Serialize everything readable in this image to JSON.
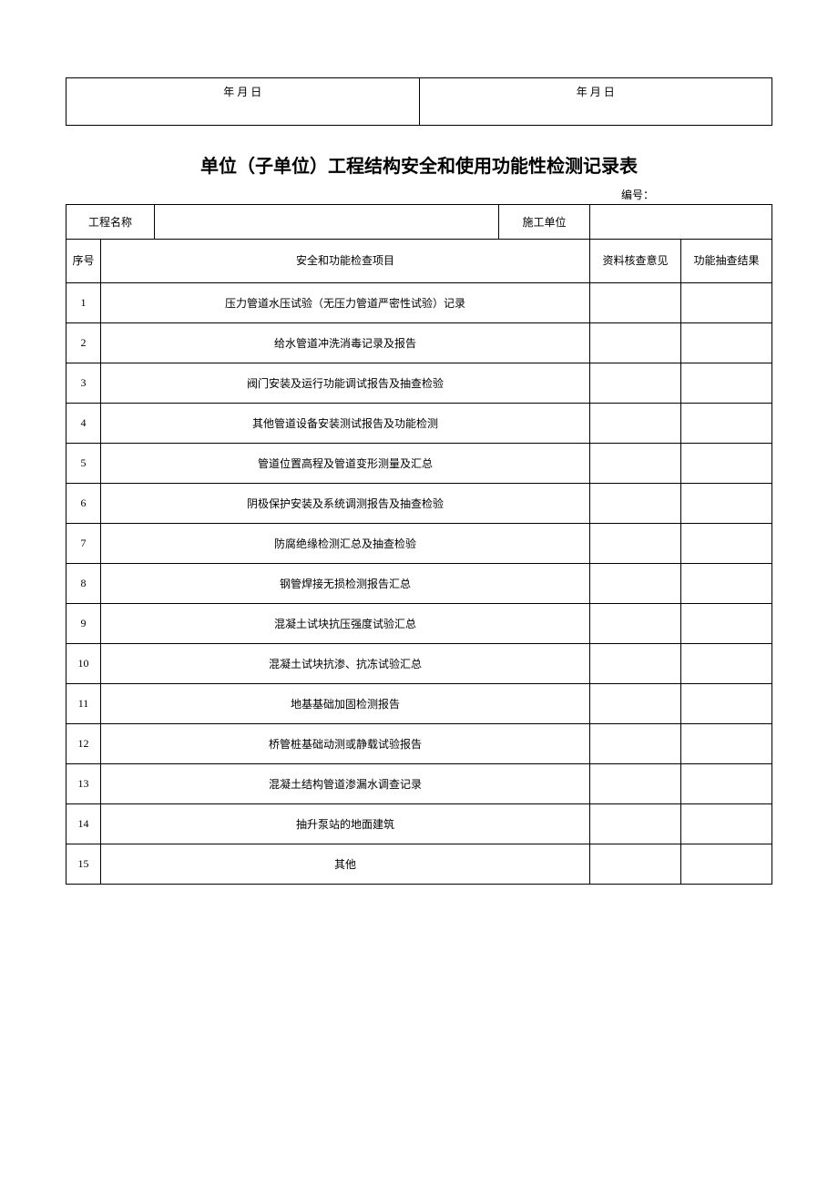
{
  "topRow": {
    "left": "年  月           日",
    "right": "年  月           日"
  },
  "title": "单位（子单位）工程结构安全和使用功能性检测记录表",
  "serialLabel": "编号：",
  "infoRow": {
    "projectNameLabel": "工程名称",
    "projectNameValue": "",
    "constructionUnitLabel": "施工单位",
    "constructionUnitValue": ""
  },
  "headers": {
    "seq": "序号",
    "item": "安全和功能检查项目",
    "review": "资料核查意见",
    "result": "功能抽查结果"
  },
  "rows": [
    {
      "seq": "1",
      "item": "压力管道水压试验（无压力管道严密性试验）记录",
      "review": "",
      "result": ""
    },
    {
      "seq": "2",
      "item": "给水管道冲洗消毒记录及报告",
      "review": "",
      "result": ""
    },
    {
      "seq": "3",
      "item": "阀门安装及运行功能调试报告及抽查检验",
      "review": "",
      "result": ""
    },
    {
      "seq": "4",
      "item": "其他管道设备安装测试报告及功能检测",
      "review": "",
      "result": ""
    },
    {
      "seq": "5",
      "item": "管道位置高程及管道变形测量及汇总",
      "review": "",
      "result": ""
    },
    {
      "seq": "6",
      "item": "阴极保护安装及系统调测报告及抽查检验",
      "review": "",
      "result": ""
    },
    {
      "seq": "7",
      "item": "防腐绝缘检测汇总及抽查检验",
      "review": "",
      "result": ""
    },
    {
      "seq": "8",
      "item": "钢管焊接无损检测报告汇总",
      "review": "",
      "result": ""
    },
    {
      "seq": "9",
      "item": "混凝土试块抗压强度试验汇总",
      "review": "",
      "result": ""
    },
    {
      "seq": "10",
      "item": "混凝土试块抗渗、抗冻试验汇总",
      "review": "",
      "result": ""
    },
    {
      "seq": "11",
      "item": "地基基础加固检测报告",
      "review": "",
      "result": ""
    },
    {
      "seq": "12",
      "item": "桥管桩基础动测或静载试验报告",
      "review": "",
      "result": ""
    },
    {
      "seq": "13",
      "item": "混凝土结构管道渗漏水调查记录",
      "review": "",
      "result": ""
    },
    {
      "seq": "14",
      "item": "抽升泵站的地面建筑",
      "review": "",
      "result": ""
    },
    {
      "seq": "15",
      "item": "其他",
      "review": "",
      "result": ""
    }
  ]
}
